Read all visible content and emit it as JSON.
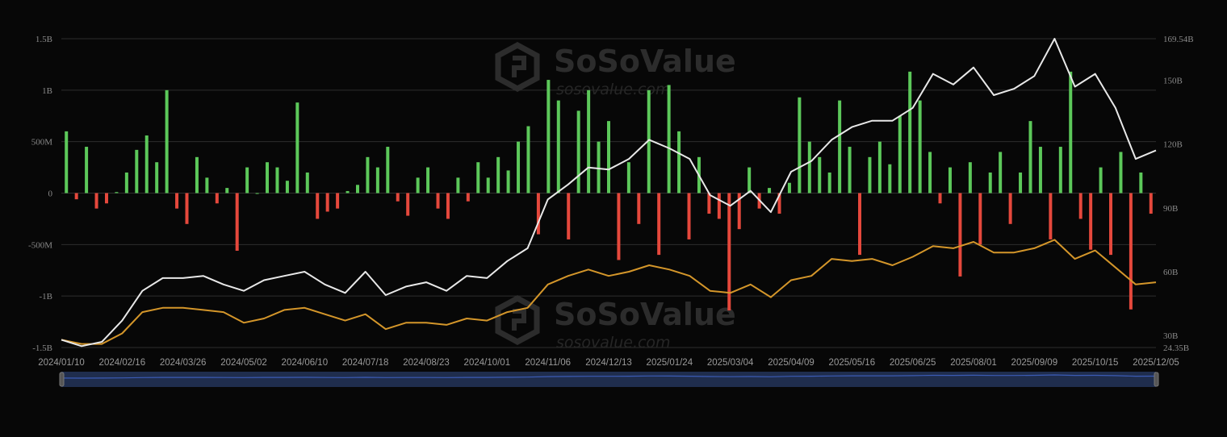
{
  "watermark": {
    "brand": "SoSoValue",
    "url": "sosovalue.com"
  },
  "colors": {
    "background": "#070707",
    "grid": "#2e2e2e",
    "inflow": "#5cc85a",
    "outflow": "#e5483c",
    "line_primary": "#e8e8e8",
    "line_secondary": "#d4962a",
    "navigator_fill": "#1f2d4d",
    "navigator_line": "#3b5bb5"
  },
  "chart_data": {
    "type": "bar+line",
    "title": "",
    "grid": true,
    "legend": "none",
    "x_tick_labels": [
      "2024/01/10",
      "2024/02/16",
      "2024/03/26",
      "2024/05/02",
      "2024/06/10",
      "2024/07/18",
      "2024/08/23",
      "2024/10/01",
      "2024/11/06",
      "2024/12/13",
      "2025/01/24",
      "2025/03/04",
      "2025/04/09",
      "2025/05/16",
      "2025/06/25",
      "2025/08/01",
      "2025/09/09",
      "2025/10/15",
      "2025/12/05"
    ],
    "x_range": [
      "2024/01/10",
      "2025/12/05"
    ],
    "left_axis": {
      "unit": "USD",
      "ylim": [
        -1500000000,
        1500000000
      ],
      "tick_labels": [
        "1.5B",
        "1B",
        "500M",
        "0",
        "-500M",
        "-1B",
        "-1.5B"
      ],
      "tick_values": [
        1500000000,
        1000000000,
        500000000,
        0,
        -500000000,
        -1000000000,
        -1500000000
      ]
    },
    "right_axis": {
      "unit": "USD",
      "ylim": [
        24.35,
        169.54
      ],
      "tick_labels": [
        "169.54B",
        "150B",
        "120B",
        "90B",
        "60B",
        "30B",
        "24.35B"
      ],
      "tick_values": [
        169.54,
        150,
        120,
        90,
        60,
        30,
        24.35
      ]
    },
    "bars": {
      "axis": "left",
      "unit": "millions USD",
      "values": [
        600,
        -60,
        450,
        -150,
        -100,
        10,
        200,
        420,
        560,
        300,
        1000,
        -150,
        -300,
        350,
        150,
        -100,
        50,
        -560,
        250,
        0,
        300,
        250,
        120,
        880,
        200,
        -250,
        -180,
        -150,
        20,
        80,
        350,
        250,
        450,
        -80,
        -220,
        150,
        250,
        -150,
        -250,
        150,
        -80,
        300,
        150,
        350,
        220,
        500,
        650,
        -400,
        1100,
        900,
        -450,
        800,
        1000,
        500,
        700,
        -650,
        300,
        -300,
        1000,
        -600,
        1050,
        600,
        -450,
        350,
        -200,
        -250,
        -1140,
        -350,
        250,
        -150,
        50,
        -200,
        100,
        930,
        500,
        350,
        200,
        900,
        450,
        -600,
        350,
        500,
        280,
        750,
        1180,
        900,
        400,
        -100,
        250,
        -810,
        300,
        -500,
        200,
        400,
        -300,
        200,
        700,
        450,
        -450,
        450,
        1180,
        -250,
        -550,
        250,
        -600,
        400,
        -1130,
        200,
        -200
      ]
    },
    "series": [
      {
        "axis": "right",
        "unit": "billions USD",
        "color": "#e8e8e8",
        "values": [
          28,
          25,
          27,
          37,
          51,
          57,
          57,
          58,
          54,
          51,
          56,
          58,
          60,
          54,
          50,
          60,
          49,
          53,
          55,
          51,
          58,
          57,
          65,
          71,
          94,
          101,
          109,
          108,
          113,
          122,
          118,
          113,
          96,
          91,
          98,
          88,
          107,
          112,
          122,
          128,
          131,
          131,
          137,
          153,
          148,
          156,
          143,
          146,
          152,
          169.54,
          147,
          153,
          137,
          113,
          117
        ]
      },
      {
        "axis": "right",
        "unit": "billions USD",
        "color": "#d4962a",
        "values": [
          28,
          26,
          26,
          31,
          41,
          43,
          43,
          42,
          41,
          36,
          38,
          42,
          43,
          40,
          37,
          40,
          33,
          36,
          36,
          35,
          38,
          37,
          41,
          43,
          54,
          58,
          61,
          58,
          60,
          63,
          61,
          58,
          51,
          50,
          54,
          48,
          56,
          58,
          66,
          65,
          66,
          63,
          67,
          72,
          71,
          74,
          69,
          69,
          71,
          75,
          66,
          70,
          62,
          54,
          55
        ]
      }
    ]
  }
}
